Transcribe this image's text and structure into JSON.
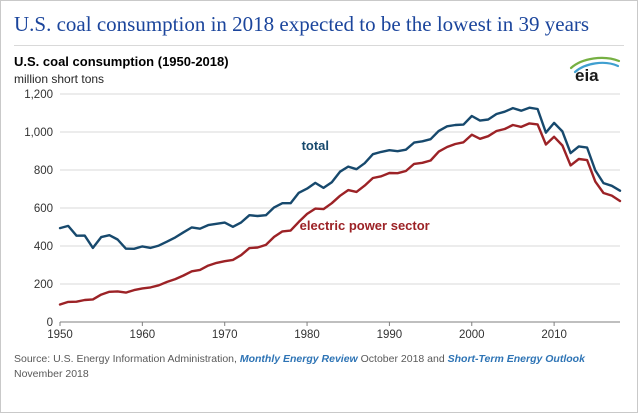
{
  "page": {
    "title": "U.S. coal consumption in 2018 expected to be the lowest in 39 years"
  },
  "logo": {
    "text": "eia"
  },
  "header": {
    "heading": "U.S. coal consumption (1950-2018)",
    "units": "million short tons"
  },
  "source": {
    "line1_prefix": "Source: U.S. Energy Information Administration, ",
    "link1": "Monthly Energy Review",
    "line1_mid": " October 2018 and ",
    "link2": "Short-Term Energy Outlook",
    "line2": "November 2018"
  },
  "chart_data": {
    "type": "line",
    "title": "U.S. coal consumption (1950-2018)",
    "xlabel": "",
    "ylabel": "million short tons",
    "ylim": [
      0,
      1200
    ],
    "yticks": [
      0,
      200,
      400,
      600,
      800,
      1000,
      1200
    ],
    "xticks": [
      1950,
      1960,
      1970,
      1980,
      1990,
      2000,
      2010
    ],
    "grid": true,
    "legend": "inline-labels",
    "colors": {
      "grid": "#d9d9d9",
      "axis": "#7f7f7f",
      "tick_text": "#333333"
    },
    "x": [
      1950,
      1951,
      1952,
      1953,
      1954,
      1955,
      1956,
      1957,
      1958,
      1959,
      1960,
      1961,
      1962,
      1963,
      1964,
      1965,
      1966,
      1967,
      1968,
      1969,
      1970,
      1971,
      1972,
      1973,
      1974,
      1975,
      1976,
      1977,
      1978,
      1979,
      1980,
      1981,
      1982,
      1983,
      1984,
      1985,
      1986,
      1987,
      1988,
      1989,
      1990,
      1991,
      1992,
      1993,
      1994,
      1995,
      1996,
      1997,
      1998,
      1999,
      2000,
      2001,
      2002,
      2003,
      2004,
      2005,
      2006,
      2007,
      2008,
      2009,
      2010,
      2011,
      2012,
      2013,
      2014,
      2015,
      2016,
      2017,
      2018
    ],
    "series": [
      {
        "name": "total",
        "color": "#17496d",
        "values": [
          494,
          506,
          454,
          455,
          390,
          447,
          457,
          434,
          386,
          385,
          398,
          390,
          402,
          423,
          445,
          472,
          498,
          491,
          510,
          517,
          523,
          501,
          524,
          562,
          558,
          562,
          603,
          625,
          625,
          680,
          702,
          732,
          706,
          736,
          791,
          818,
          804,
          836,
          883,
          895,
          904,
          899,
          907,
          944,
          951,
          962,
          1006,
          1030,
          1037,
          1039,
          1084,
          1060,
          1066,
          1095,
          1107,
          1126,
          1112,
          1128,
          1121,
          997,
          1048,
          1003,
          889,
          924,
          918,
          798,
          731,
          717,
          691
        ]
      },
      {
        "name": "electric power sector",
        "color": "#9c2226",
        "values": [
          92,
          106,
          107,
          116,
          119,
          144,
          159,
          161,
          155,
          168,
          177,
          182,
          193,
          211,
          226,
          245,
          267,
          274,
          297,
          311,
          320,
          327,
          352,
          389,
          392,
          406,
          448,
          477,
          481,
          527,
          569,
          597,
          594,
          625,
          664,
          694,
          685,
          718,
          758,
          767,
          784,
          783,
          795,
          832,
          838,
          850,
          897,
          921,
          937,
          946,
          986,
          964,
          978,
          1005,
          1016,
          1037,
          1027,
          1045,
          1040,
          934,
          975,
          929,
          824,
          858,
          852,
          739,
          679,
          665,
          637
        ]
      }
    ],
    "annotations": [
      {
        "text": "total",
        "x": 1981,
        "y": 905,
        "color": "#17496d"
      },
      {
        "text": "electric power sector",
        "x": 1987,
        "y": 485,
        "color": "#9c2226"
      }
    ]
  }
}
